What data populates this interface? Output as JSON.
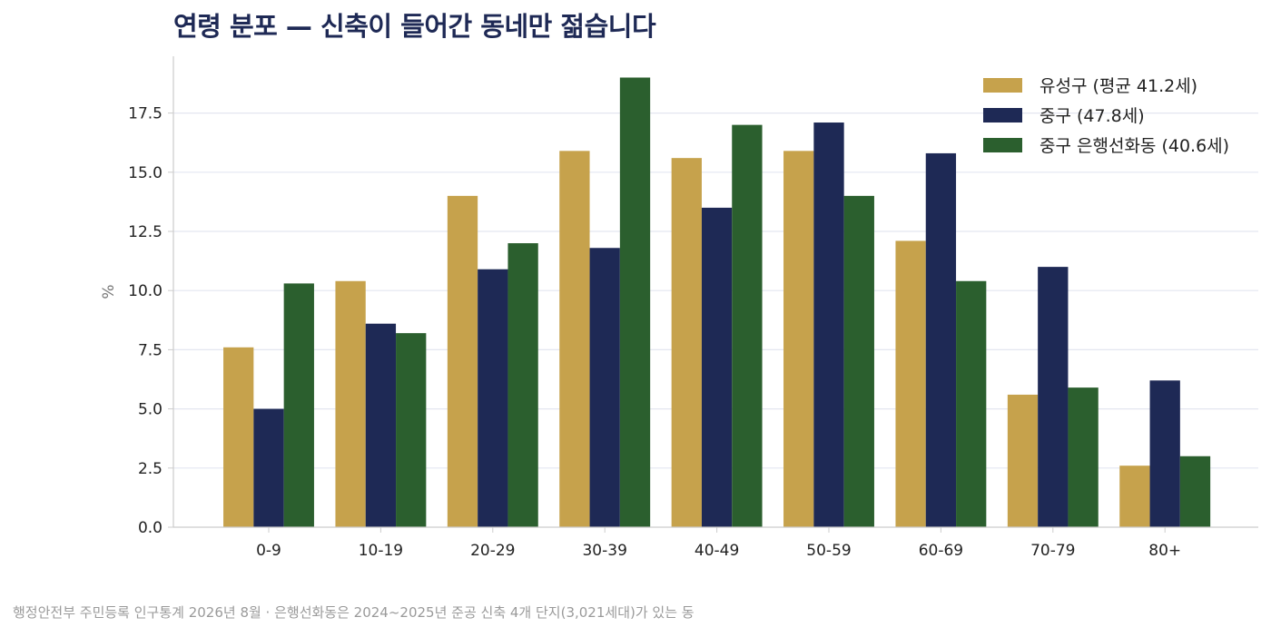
{
  "title": "연령 분포 — 신축이 들어간 동네만 젊습니다",
  "source": "행정안전부 주민등록 인구통계 2026년 8월 · 은행선화동은 2024~2025년 준공 신축 4개 단지(3,021세대)가 있는 동",
  "chart_data": {
    "type": "bar",
    "title": "연령 분포 — 신축이 들어간 동네만 젊습니다",
    "xlabel": "",
    "ylabel": "%",
    "ylim": [
      0,
      19.9
    ],
    "yticks": [
      "0.0",
      "2.5",
      "5.0",
      "7.5",
      "10.0",
      "12.5",
      "15.0",
      "17.5"
    ],
    "grid": "horizontal",
    "legend_position": "top-right",
    "categories": [
      "0-9",
      "10-19",
      "20-29",
      "30-39",
      "40-49",
      "50-59",
      "60-69",
      "70-79",
      "80+"
    ],
    "series": [
      {
        "name": "유성구 (평균 41.2세)",
        "color": "#c6a24c",
        "values": [
          7.6,
          10.4,
          14.0,
          15.9,
          15.6,
          15.9,
          12.1,
          5.6,
          2.6
        ]
      },
      {
        "name": "중구 (47.8세)",
        "color": "#1e2955",
        "values": [
          5.0,
          8.6,
          10.9,
          11.8,
          13.5,
          17.1,
          15.8,
          11.0,
          6.2
        ]
      },
      {
        "name": "중구 은행선화동 (40.6세)",
        "color": "#2b5f2e",
        "values": [
          10.3,
          8.2,
          12.0,
          19.0,
          17.0,
          14.0,
          10.4,
          5.9,
          3.0
        ]
      }
    ]
  }
}
